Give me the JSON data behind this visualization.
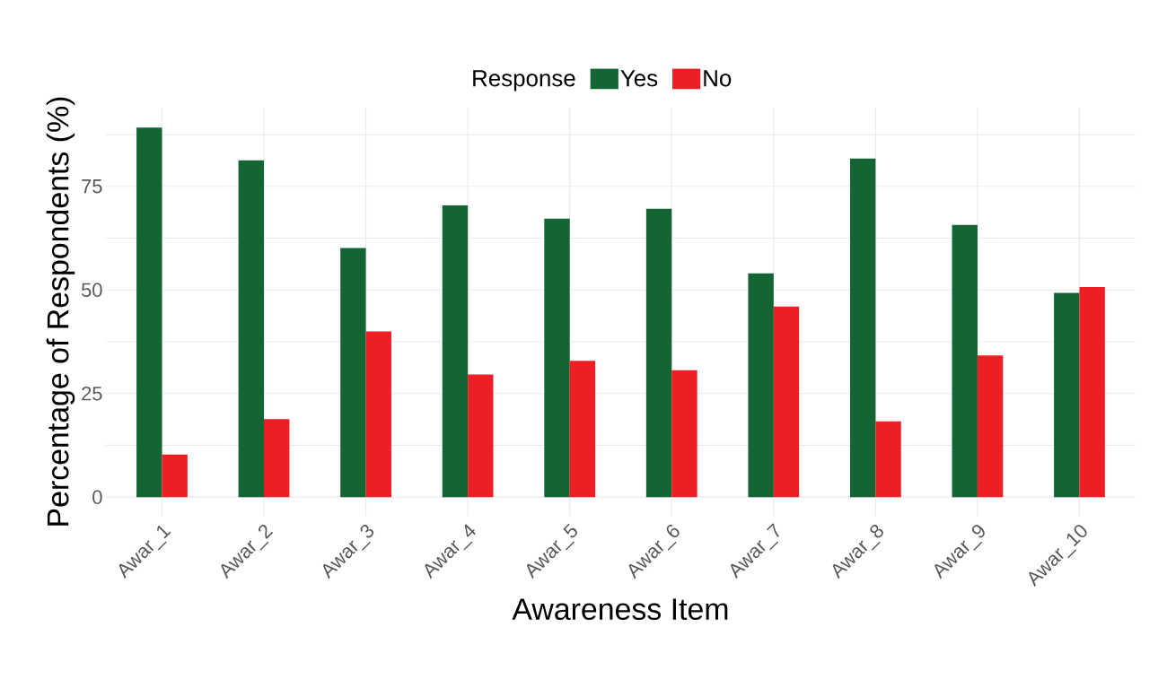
{
  "chart_data": {
    "type": "bar",
    "xlabel": "Awareness Item",
    "ylabel": "Percentage of Respondents (%)",
    "legend_title": "Response",
    "categories": [
      "Awar_1",
      "Awar_2",
      "Awar_3",
      "Awar_4",
      "Awar_5",
      "Awar_6",
      "Awar_7",
      "Awar_8",
      "Awar_9",
      "Awar_10"
    ],
    "series": [
      {
        "name": "Yes",
        "color": "#136534",
        "values": [
          89.2,
          81.3,
          60.1,
          70.4,
          67.2,
          69.6,
          54.0,
          81.7,
          65.7,
          49.3
        ]
      },
      {
        "name": "No",
        "color": "#ed1f24",
        "values": [
          10.3,
          18.8,
          40.0,
          29.6,
          32.9,
          30.6,
          46.0,
          18.3,
          34.2,
          50.7
        ]
      }
    ],
    "ylim": [
      -4.5,
      94
    ],
    "yticks": [
      0,
      {
        "value": 12.5,
        "label": null
      },
      25,
      {
        "value": 37.5,
        "label": null
      },
      50,
      {
        "value": 62.5,
        "label": null
      },
      75,
      {
        "value": 87.5,
        "label": null
      }
    ],
    "grid": true,
    "legend": "top"
  }
}
